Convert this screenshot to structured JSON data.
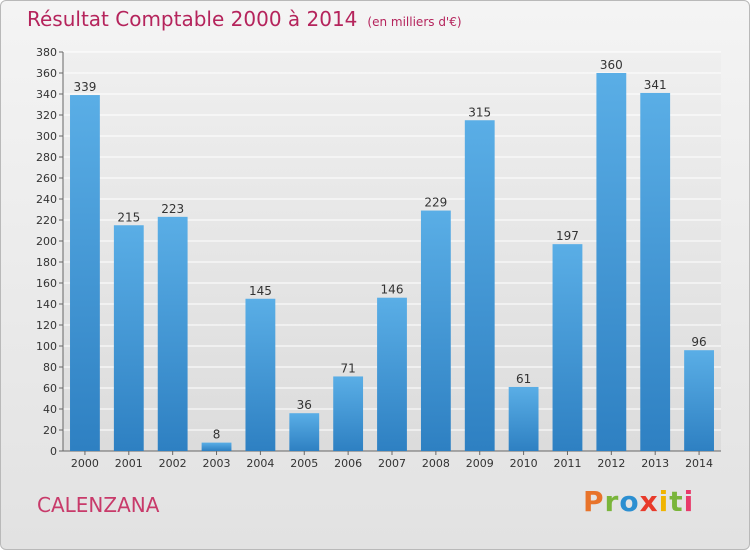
{
  "header": {
    "title": "Résultat Comptable 2000 à 2014",
    "unit": "(en milliers d'€)"
  },
  "footer": {
    "city": "CALENZANA",
    "logo": "Proxiti"
  },
  "colors": {
    "title": "#b5245c",
    "bar_top": "#5aaee6",
    "bar_bottom": "#2e80c2",
    "logo_letters": [
      "#e8732a",
      "#7ab53b",
      "#2c8fd1",
      "#e83a2a",
      "#f0b400",
      "#7ab53b",
      "#e83a6a"
    ]
  },
  "chart_data": {
    "type": "bar",
    "title": "Résultat Comptable 2000 à 2014",
    "categories": [
      "2000",
      "2001",
      "2002",
      "2003",
      "2004",
      "2005",
      "2006",
      "2007",
      "2008",
      "2009",
      "2010",
      "2011",
      "2012",
      "2013",
      "2014"
    ],
    "values": [
      339,
      215,
      223,
      8,
      145,
      36,
      71,
      146,
      229,
      315,
      61,
      197,
      360,
      341,
      96
    ],
    "ylim": [
      0,
      380
    ],
    "yticks": [
      0,
      20,
      40,
      60,
      80,
      100,
      120,
      140,
      160,
      180,
      200,
      220,
      240,
      260,
      280,
      300,
      320,
      340,
      360,
      380
    ],
    "grid": true,
    "legend": "none"
  }
}
